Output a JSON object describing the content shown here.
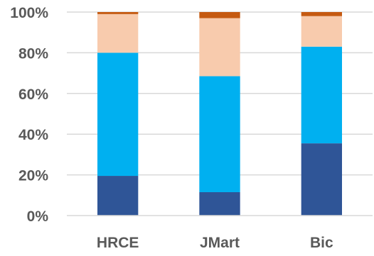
{
  "chart_data": {
    "type": "bar",
    "stacked": true,
    "percent_stacked": true,
    "title": "",
    "xlabel": "",
    "ylabel": "",
    "categories": [
      "HRCE",
      "JMart",
      "Bic"
    ],
    "ylim": [
      0,
      100
    ],
    "yticks": [
      0,
      20,
      40,
      60,
      80,
      100
    ],
    "ytick_labels": [
      "0%",
      "20%",
      "40%",
      "60%",
      "80%",
      "100%"
    ],
    "grid": true,
    "legend": "none",
    "series": [
      {
        "values": [
          19.5,
          11.5,
          35.5
        ],
        "color": "#2F5597"
      },
      {
        "values": [
          60.5,
          57.0,
          47.5
        ],
        "color": "#00B0F0"
      },
      {
        "values": [
          19.0,
          28.5,
          15.0
        ],
        "color": "#F8CBAD"
      },
      {
        "values": [
          1.0,
          3.0,
          2.0
        ],
        "color": "#C55A11"
      }
    ],
    "colors": {
      "grid": "#D9D9D9",
      "axis": "#D9D9D9",
      "text": "#595959"
    }
  }
}
